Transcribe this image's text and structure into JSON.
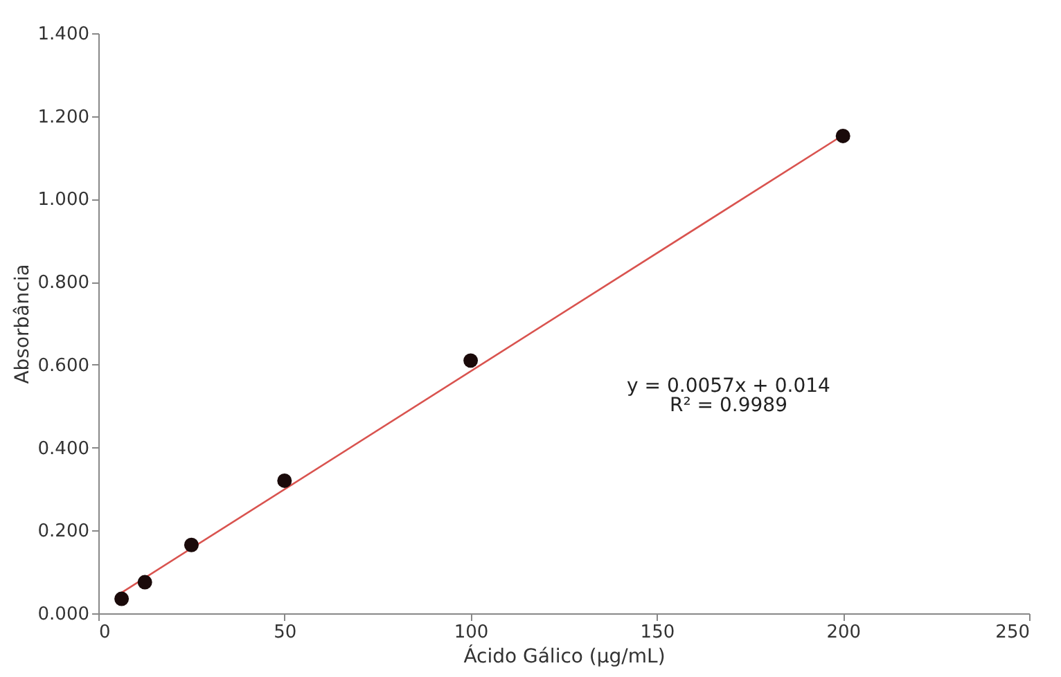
{
  "chart_data": {
    "type": "scatter",
    "xlabel": "Ácido Gálico (µg/mL)",
    "ylabel": "Absorbância",
    "series": [
      {
        "color": "#1a0a0a",
        "marker": "circle",
        "x": [
          6.25,
          12.5,
          25,
          50,
          100,
          200
        ],
        "values": [
          0.035,
          0.075,
          0.165,
          0.32,
          0.61,
          1.152
        ]
      },
      {
        "type": "line",
        "color": "#d9534f",
        "line_style": "solid",
        "x": [
          6.25,
          200
        ],
        "values": [
          0.05,
          1.154
        ]
      }
    ],
    "xlim": [
      0,
      250
    ],
    "xticks": [
      0,
      50,
      100,
      150,
      200,
      250
    ],
    "ylim": [
      0,
      1.4
    ],
    "yticks": [
      {
        "value": 0,
        "label": "0.000"
      },
      {
        "value": 0.2,
        "label": "0.200"
      },
      {
        "value": 0.4,
        "label": "0.400"
      },
      {
        "value": 0.6,
        "label": "0.600"
      },
      {
        "value": 0.8,
        "label": "0.800"
      },
      {
        "value": 1.0,
        "label": "1.000"
      },
      {
        "value": 1.2,
        "label": "1.200"
      },
      {
        "value": 1.4,
        "label": "1.400"
      }
    ],
    "annotations": [
      "y = 0.0057x + 0.014",
      "R² = 0.9989"
    ],
    "grid": false
  }
}
